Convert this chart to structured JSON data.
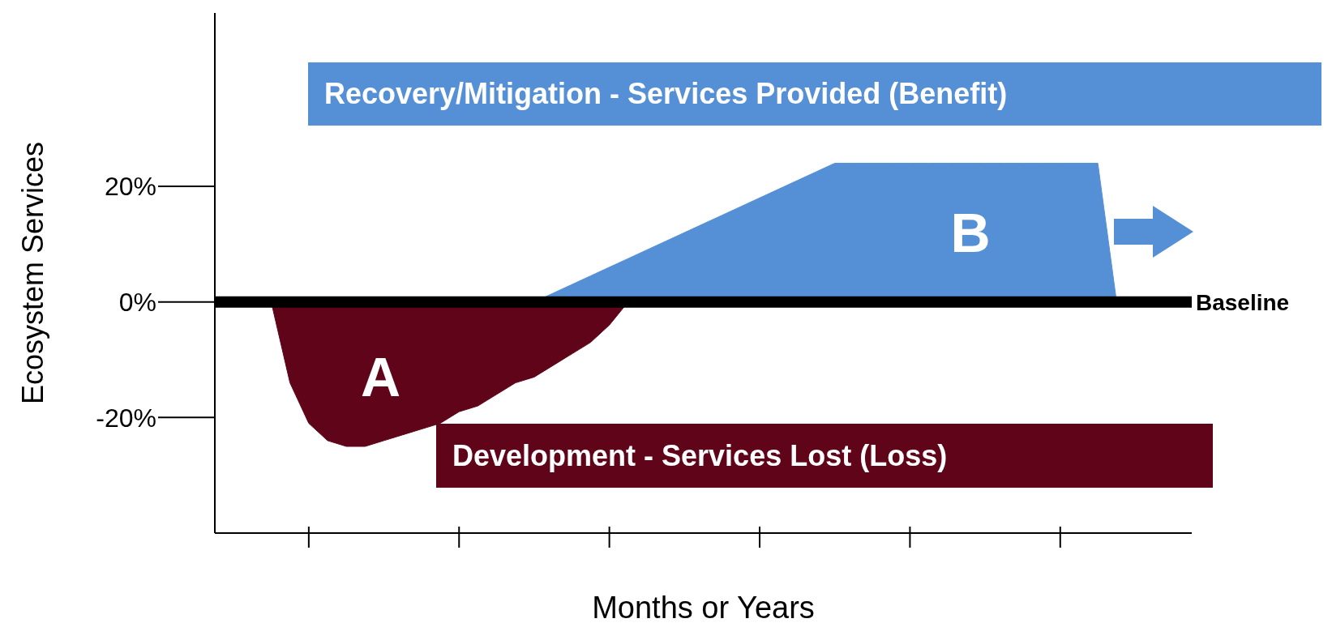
{
  "chart_data": {
    "type": "area",
    "xlabel": "Months or Years",
    "ylabel": "Ecosystem Services",
    "categories": [
      null,
      null,
      null,
      null,
      null,
      null,
      null,
      null,
      null,
      null,
      null,
      null,
      null,
      null,
      null,
      null,
      null,
      null,
      null,
      null,
      null,
      null,
      null,
      null,
      null,
      null,
      null,
      null,
      null,
      null,
      null,
      null,
      null,
      null,
      null,
      null,
      null,
      null,
      null,
      null,
      null,
      null,
      null,
      null,
      null,
      null,
      null,
      null,
      null,
      null,
      null,
      null,
      null
    ],
    "ylim": [
      -40,
      50
    ],
    "yticks": [
      {
        "value": -20,
        "label": "-20%"
      },
      {
        "value": 0,
        "label": "0%"
      },
      {
        "value": 20,
        "label": "20%"
      }
    ],
    "series": [
      {
        "name": "Recovery/Mitigation - Services Provided (Benefit)",
        "color": "#5590d6",
        "values": [
          0,
          0,
          0,
          0,
          0,
          0,
          0,
          0,
          0,
          0,
          0,
          0,
          0,
          0,
          0,
          0,
          0,
          0,
          1.5,
          3,
          4.5,
          6,
          7.5,
          9,
          10.5,
          12,
          13.5,
          15,
          16.5,
          18,
          19.5,
          21,
          22.5,
          24,
          24,
          24,
          24,
          24,
          24,
          24,
          24,
          24,
          24,
          24,
          24,
          24,
          24,
          24,
          0,
          0,
          0,
          0,
          0
        ]
      },
      {
        "name": "Development -  Services Lost (Loss)",
        "color": "#600419",
        "values": [
          0,
          0,
          0,
          0,
          -14,
          -21,
          -24,
          -25,
          -25,
          -24,
          -23,
          -22,
          -21,
          -19,
          -18,
          -16,
          -14,
          -13,
          -11,
          -9,
          -7,
          -4,
          0,
          0,
          0,
          0,
          0,
          0,
          0,
          0,
          0,
          0,
          0,
          0,
          0,
          0,
          0,
          0,
          0,
          0,
          0,
          0,
          0,
          0,
          0,
          0,
          0,
          0,
          0,
          0,
          0,
          0,
          0
        ]
      }
    ],
    "ref_lines": [
      {
        "axis": "y",
        "value": 0,
        "label": "Baseline",
        "color": "#000000"
      }
    ],
    "annotations": [
      "A",
      "B"
    ]
  }
}
